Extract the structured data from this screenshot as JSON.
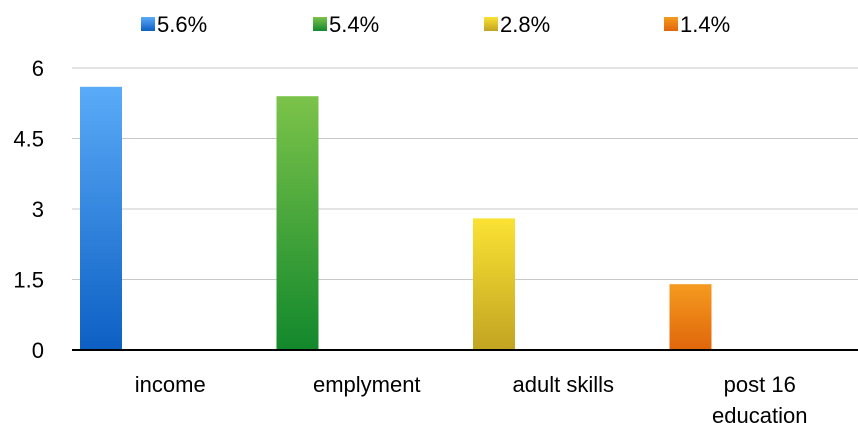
{
  "chart_data": {
    "type": "bar",
    "categories": [
      [
        "income"
      ],
      [
        "emplyment"
      ],
      [
        "adult skills"
      ],
      [
        "post 16",
        "education"
      ]
    ],
    "series": [
      {
        "name": "5.6%",
        "values": [
          5.6,
          0,
          0,
          0
        ],
        "color_top": "#5aabf8",
        "color_bottom": "#0d5fc3"
      },
      {
        "name": "5.4%",
        "values": [
          0,
          5.4,
          0,
          0
        ],
        "color_top": "#7cc34a",
        "color_bottom": "#12882c"
      },
      {
        "name": "2.8%",
        "values": [
          0,
          0,
          2.8,
          0
        ],
        "color_top": "#fbe233",
        "color_bottom": "#c2a422"
      },
      {
        "name": "1.4%",
        "values": [
          0,
          0,
          0,
          1.4
        ],
        "color_top": "#f59b1f",
        "color_bottom": "#e0660b"
      }
    ],
    "yticks": [
      "0",
      "1.5",
      "3",
      "4.5",
      "6"
    ],
    "ylim": [
      0,
      6
    ],
    "grid": true,
    "legend_position": "top",
    "title": "",
    "xlabel": "",
    "ylabel": ""
  }
}
